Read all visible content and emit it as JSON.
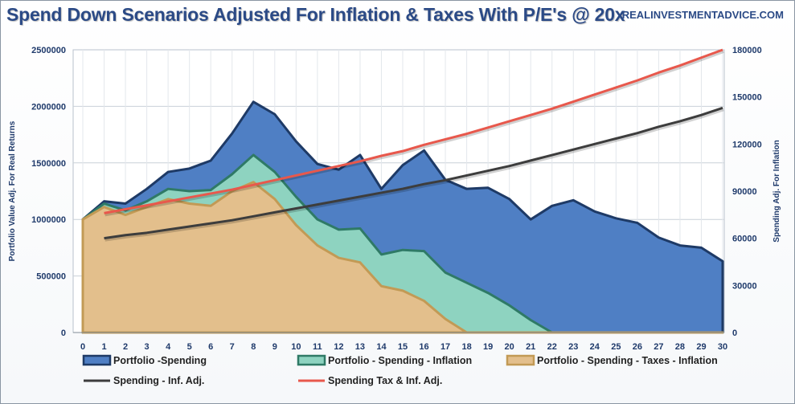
{
  "header": {
    "title": "Spend Down Scenarios Adjusted For Inflation & Taxes With P/E's @ 20x",
    "source": "REALINVESTMENTADVICE.COM"
  },
  "chart_data": {
    "type": "area",
    "title": "Spend Down Scenarios Adjusted For Inflation & Taxes With P/E's @ 20x",
    "categories": [
      0,
      1,
      2,
      3,
      4,
      5,
      6,
      7,
      8,
      9,
      10,
      11,
      12,
      13,
      14,
      15,
      16,
      17,
      18,
      19,
      20,
      21,
      22,
      23,
      24,
      25,
      26,
      27,
      28,
      29,
      30
    ],
    "xlim": [
      0,
      30
    ],
    "y_left": {
      "label": "Portfolio Value Adj. For Real Returns",
      "ylim": [
        0,
        2500000
      ],
      "ticks": [
        0,
        500000,
        1000000,
        1500000,
        2000000,
        2500000
      ],
      "tick_labels": [
        "0",
        "500000",
        "1000000",
        "1500000",
        "2000000",
        "2500000"
      ]
    },
    "y_right": {
      "label": "Spending Adj. For Inflation",
      "ylim": [
        0,
        180000
      ],
      "ticks": [
        0,
        30000,
        60000,
        90000,
        120000,
        150000,
        180000
      ],
      "tick_labels": [
        "0",
        "30000",
        "60000",
        "90000",
        "120000",
        "150000",
        "180000"
      ]
    },
    "grid": true,
    "legend_position": "bottom",
    "series": [
      {
        "name": "Portfolio -Spending",
        "kind": "area",
        "axis": "left",
        "color": "#4f7fc4",
        "stroke": "#1e3a66",
        "values": [
          1000000,
          1160000,
          1140000,
          1270000,
          1420000,
          1450000,
          1520000,
          1760000,
          2040000,
          1930000,
          1690000,
          1490000,
          1440000,
          1570000,
          1270000,
          1480000,
          1610000,
          1350000,
          1270000,
          1280000,
          1180000,
          1000000,
          1120000,
          1170000,
          1070000,
          1010000,
          970000,
          840000,
          770000,
          750000,
          630000
        ]
      },
      {
        "name": "Portfolio - Spending - Inflation",
        "kind": "area",
        "axis": "left",
        "color": "#8ed3c0",
        "stroke": "#2f7a66",
        "values": [
          1000000,
          1140000,
          1080000,
          1160000,
          1270000,
          1250000,
          1260000,
          1400000,
          1570000,
          1420000,
          1200000,
          1000000,
          910000,
          920000,
          690000,
          730000,
          720000,
          530000,
          440000,
          350000,
          240000,
          110000,
          0,
          0,
          0,
          0,
          0,
          0,
          0,
          0,
          0
        ]
      },
      {
        "name": "Portfolio - Spending - Taxes - Inflation",
        "kind": "area",
        "axis": "left",
        "color": "#e3bf8c",
        "stroke": "#c29a55",
        "values": [
          1000000,
          1110000,
          1040000,
          1110000,
          1180000,
          1140000,
          1120000,
          1250000,
          1330000,
          1180000,
          950000,
          770000,
          660000,
          620000,
          410000,
          370000,
          280000,
          120000,
          0,
          0,
          0,
          0,
          0,
          0,
          0,
          0,
          0,
          0,
          0,
          0,
          0
        ]
      },
      {
        "name": "Spending - Inf. Adj.",
        "kind": "line",
        "axis": "right",
        "color": "#3d3d3d",
        "x": [
          1,
          2,
          3,
          4,
          5,
          6,
          7,
          8,
          9,
          10,
          11,
          12,
          13,
          14,
          15,
          16,
          17,
          18,
          19,
          20,
          21,
          22,
          23,
          24,
          25,
          26,
          27,
          28,
          29,
          30
        ],
        "values": [
          60000,
          62000,
          63500,
          65500,
          67500,
          69500,
          71500,
          74000,
          76500,
          79000,
          81500,
          84000,
          86500,
          89000,
          91500,
          94500,
          97000,
          100000,
          103000,
          106000,
          109500,
          113000,
          116500,
          120000,
          123500,
          127000,
          131000,
          134500,
          138500,
          143000
        ]
      },
      {
        "name": "Spending Tax & Inf. Adj.",
        "kind": "line",
        "axis": "right",
        "color": "#e8584c",
        "x": [
          1,
          2,
          3,
          4,
          5,
          6,
          7,
          8,
          9,
          10,
          11,
          12,
          13,
          14,
          15,
          16,
          17,
          18,
          19,
          20,
          21,
          22,
          23,
          24,
          25,
          26,
          27,
          28,
          29,
          30
        ],
        "values": [
          76000,
          78500,
          81000,
          83500,
          86000,
          88500,
          91000,
          94000,
          97000,
          100000,
          103000,
          106000,
          109000,
          112500,
          115500,
          119500,
          123000,
          126500,
          130500,
          134500,
          138500,
          142500,
          147000,
          151500,
          156000,
          160500,
          165500,
          170000,
          175000,
          180000
        ]
      }
    ]
  }
}
